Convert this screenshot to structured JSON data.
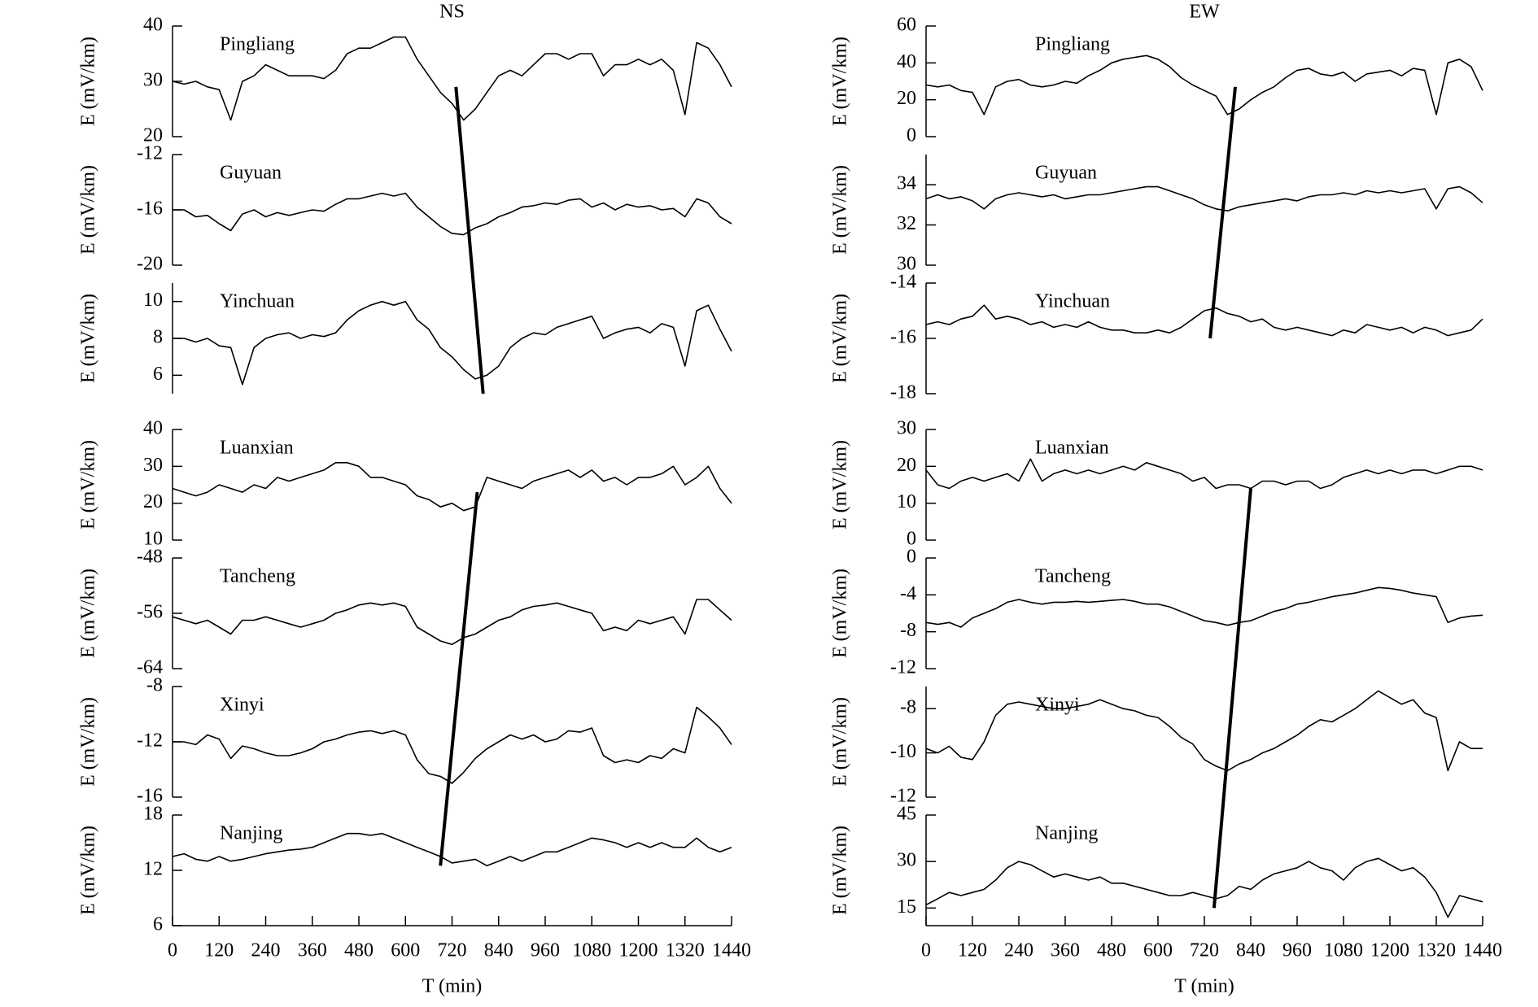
{
  "chart_data": [
    {
      "type": "line",
      "title": "NS",
      "xlim": [
        0,
        1440
      ],
      "x": [
        0,
        30,
        60,
        90,
        120,
        150,
        180,
        210,
        240,
        270,
        300,
        330,
        360,
        390,
        420,
        450,
        480,
        510,
        540,
        570,
        600,
        630,
        660,
        690,
        720,
        750,
        780,
        810,
        840,
        870,
        900,
        930,
        960,
        990,
        1020,
        1050,
        1080,
        1110,
        1140,
        1170,
        1200,
        1230,
        1260,
        1290,
        1320,
        1350,
        1380,
        1410,
        1440
      ],
      "panels": [
        {
          "name": "Pingliang",
          "ylabel": "E (mV/km)",
          "ylim": [
            20,
            40
          ],
          "yticks": [
            20,
            30,
            40
          ],
          "values": [
            30,
            29.5,
            30,
            29,
            28.5,
            23,
            30,
            31,
            33,
            32,
            31,
            31,
            31,
            30.5,
            32,
            35,
            36,
            36,
            37,
            38,
            38,
            34,
            31,
            28,
            26,
            23,
            25,
            28,
            31,
            32,
            31,
            33,
            35,
            35,
            34,
            35,
            35,
            31,
            33,
            33,
            34,
            33,
            34,
            32,
            24,
            37,
            36,
            33,
            29
          ]
        },
        {
          "name": "Guyuan",
          "ylabel": "E (mV/km)",
          "ylim": [
            -20,
            -12
          ],
          "yticks": [
            -20,
            -16,
            -12
          ],
          "values": [
            -16,
            -16,
            -16.5,
            -16.4,
            -17,
            -17.5,
            -16.3,
            -16,
            -16.5,
            -16.2,
            -16.4,
            -16.2,
            -16,
            -16.1,
            -15.6,
            -15.2,
            -15.2,
            -15,
            -14.8,
            -15,
            -14.8,
            -15.8,
            -16.5,
            -17.2,
            -17.7,
            -17.8,
            -17.3,
            -17,
            -16.5,
            -16.2,
            -15.8,
            -15.7,
            -15.5,
            -15.6,
            -15.3,
            -15.2,
            -15.8,
            -15.5,
            -16,
            -15.6,
            -15.8,
            -15.7,
            -16,
            -15.9,
            -16.5,
            -15.2,
            -15.5,
            -16.5,
            -17
          ]
        },
        {
          "name": "Yinchuan",
          "ylabel": "E (mV/km)",
          "ylim": [
            5,
            11
          ],
          "yticks": [
            6,
            8,
            10
          ],
          "values": [
            8,
            8,
            7.8,
            8,
            7.6,
            7.5,
            5.5,
            7.5,
            8,
            8.2,
            8.3,
            8,
            8.2,
            8.1,
            8.3,
            9,
            9.5,
            9.8,
            10,
            9.8,
            10,
            9,
            8.5,
            7.5,
            7,
            6.3,
            5.8,
            6,
            6.5,
            7.5,
            8,
            8.3,
            8.2,
            8.6,
            8.8,
            9,
            9.2,
            8,
            8.3,
            8.5,
            8.6,
            8.3,
            8.8,
            8.6,
            6.5,
            9.5,
            9.8,
            8.5,
            7.3
          ]
        }
      ],
      "front": {
        "x": [
          730,
          800
        ],
        "y": [
          29,
          5
        ]
      }
    },
    {
      "type": "line",
      "xlabel": "T (min)",
      "xlim": [
        0,
        1440
      ],
      "xticks": [
        0,
        120,
        240,
        360,
        480,
        600,
        720,
        840,
        960,
        1080,
        1200,
        1320,
        1440
      ],
      "x": [
        0,
        30,
        60,
        90,
        120,
        150,
        180,
        210,
        240,
        270,
        300,
        330,
        360,
        390,
        420,
        450,
        480,
        510,
        540,
        570,
        600,
        630,
        660,
        690,
        720,
        750,
        780,
        810,
        840,
        870,
        900,
        930,
        960,
        990,
        1020,
        1050,
        1080,
        1110,
        1140,
        1170,
        1200,
        1230,
        1260,
        1290,
        1320,
        1350,
        1380,
        1410,
        1440
      ],
      "panels": [
        {
          "name": "Luanxian",
          "ylabel": "E (mV/km)",
          "ylim": [
            10,
            40
          ],
          "yticks": [
            10,
            20,
            30,
            40
          ],
          "values": [
            24,
            23,
            22,
            23,
            25,
            24,
            23,
            25,
            24,
            27,
            26,
            27,
            28,
            29,
            31,
            31,
            30,
            27,
            27,
            26,
            25,
            22,
            21,
            19,
            20,
            18,
            19,
            27,
            26,
            25,
            24,
            26,
            27,
            28,
            29,
            27,
            29,
            26,
            27,
            25,
            27,
            27,
            28,
            30,
            25,
            27,
            30,
            24,
            20
          ]
        },
        {
          "name": "Tancheng",
          "ylabel": "E (mV/km)",
          "ylim": [
            -64,
            -48
          ],
          "yticks": [
            -64,
            -56,
            -48
          ],
          "values": [
            -56.5,
            -57,
            -57.5,
            -57,
            -58,
            -59,
            -57,
            -57,
            -56.5,
            -57,
            -57.5,
            -58,
            -57.5,
            -57,
            -56,
            -55.5,
            -54.8,
            -54.5,
            -54.8,
            -54.5,
            -55,
            -58,
            -59,
            -60,
            -60.5,
            -59.5,
            -59,
            -58,
            -57,
            -56.5,
            -55.5,
            -55,
            -54.8,
            -54.5,
            -55,
            -55.5,
            -56,
            -58.5,
            -58,
            -58.5,
            -57,
            -57.5,
            -57,
            -56.5,
            -59,
            -54,
            -54,
            -55.5,
            -57
          ]
        },
        {
          "name": "Xinyi",
          "ylabel": "E (mV/km)",
          "ylim": [
            -16,
            -8
          ],
          "yticks": [
            -16,
            -12,
            -8
          ],
          "values": [
            -12,
            -12,
            -12.2,
            -11.5,
            -11.8,
            -13.2,
            -12.3,
            -12.5,
            -12.8,
            -13,
            -13,
            -12.8,
            -12.5,
            -12,
            -11.8,
            -11.5,
            -11.3,
            -11.2,
            -11.4,
            -11.2,
            -11.5,
            -13.3,
            -14.3,
            -14.5,
            -15,
            -14.2,
            -13.2,
            -12.5,
            -12,
            -11.5,
            -11.8,
            -11.5,
            -12,
            -11.8,
            -11.2,
            -11.3,
            -11,
            -13,
            -13.5,
            -13.3,
            -13.5,
            -13,
            -13.2,
            -12.5,
            -12.8,
            -9.5,
            -10.2,
            -11,
            -12.2
          ]
        },
        {
          "name": "Nanjing",
          "ylabel": "E (mV/km)",
          "ylim": [
            6,
            18
          ],
          "yticks": [
            6,
            12,
            18
          ],
          "values": [
            13.5,
            13.8,
            13.2,
            13,
            13.5,
            13,
            13.2,
            13.5,
            13.8,
            14,
            14.2,
            14.3,
            14.5,
            15,
            15.5,
            16,
            16,
            15.8,
            16,
            15.5,
            15,
            14.5,
            14,
            13.5,
            12.8,
            13,
            13.2,
            12.5,
            13,
            13.5,
            13,
            13.5,
            14,
            14,
            14.5,
            15,
            15.5,
            15.3,
            15,
            14.5,
            15,
            14.5,
            15,
            14.5,
            14.5,
            15.5,
            14.5,
            14,
            14.5
          ]
        }
      ],
      "front": {
        "x": [
          785,
          690
        ],
        "y": [
          23,
          12.5
        ]
      }
    },
    {
      "type": "line",
      "title": "EW",
      "xlim": [
        0,
        1440
      ],
      "x": [
        0,
        30,
        60,
        90,
        120,
        150,
        180,
        210,
        240,
        270,
        300,
        330,
        360,
        390,
        420,
        450,
        480,
        510,
        540,
        570,
        600,
        630,
        660,
        690,
        720,
        750,
        780,
        810,
        840,
        870,
        900,
        930,
        960,
        990,
        1020,
        1050,
        1080,
        1110,
        1140,
        1170,
        1200,
        1230,
        1260,
        1290,
        1320,
        1350,
        1380,
        1410,
        1440
      ],
      "panels": [
        {
          "name": "Pingliang",
          "ylabel": "E (mV/km)",
          "ylim": [
            0,
            60
          ],
          "yticks": [
            0,
            20,
            40,
            60
          ],
          "values": [
            28,
            27,
            28,
            25,
            24,
            12,
            27,
            30,
            31,
            28,
            27,
            28,
            30,
            29,
            33,
            36,
            40,
            42,
            43,
            44,
            42,
            38,
            32,
            28,
            25,
            22,
            12,
            15,
            20,
            24,
            27,
            32,
            36,
            37,
            34,
            33,
            35,
            30,
            34,
            35,
            36,
            33,
            37,
            36,
            12,
            40,
            42,
            38,
            25
          ]
        },
        {
          "name": "Guyuan",
          "ylabel": "E (mV/km)",
          "ylim": [
            30,
            35.5
          ],
          "yticks": [
            30,
            32,
            34
          ],
          "values": [
            33.3,
            33.5,
            33.3,
            33.4,
            33.2,
            32.8,
            33.3,
            33.5,
            33.6,
            33.5,
            33.4,
            33.5,
            33.3,
            33.4,
            33.5,
            33.5,
            33.6,
            33.7,
            33.8,
            33.9,
            33.9,
            33.7,
            33.5,
            33.3,
            33,
            32.8,
            32.7,
            32.9,
            33,
            33.1,
            33.2,
            33.3,
            33.2,
            33.4,
            33.5,
            33.5,
            33.6,
            33.5,
            33.7,
            33.6,
            33.7,
            33.6,
            33.7,
            33.8,
            32.8,
            33.8,
            33.9,
            33.6,
            33.1
          ]
        },
        {
          "name": "Yinchuan",
          "ylabel": "E (mV/km)",
          "ylim": [
            -18,
            -14
          ],
          "yticks": [
            -18,
            -16,
            -14
          ],
          "values": [
            -15.5,
            -15.4,
            -15.5,
            -15.3,
            -15.2,
            -14.8,
            -15.3,
            -15.2,
            -15.3,
            -15.5,
            -15.4,
            -15.6,
            -15.5,
            -15.6,
            -15.4,
            -15.6,
            -15.7,
            -15.7,
            -15.8,
            -15.8,
            -15.7,
            -15.8,
            -15.6,
            -15.3,
            -15,
            -14.9,
            -15.1,
            -15.2,
            -15.4,
            -15.3,
            -15.6,
            -15.7,
            -15.6,
            -15.7,
            -15.8,
            -15.9,
            -15.7,
            -15.8,
            -15.5,
            -15.6,
            -15.7,
            -15.6,
            -15.8,
            -15.6,
            -15.7,
            -15.9,
            -15.8,
            -15.7,
            -15.3
          ]
        }
      ],
      "front": {
        "x": [
          800,
          735
        ],
        "y": [
          27,
          -16
        ]
      }
    },
    {
      "type": "line",
      "xlabel": "T (min)",
      "xlim": [
        0,
        1440
      ],
      "xticks": [
        0,
        120,
        240,
        360,
        480,
        600,
        720,
        840,
        960,
        1080,
        1200,
        1320,
        1440
      ],
      "x": [
        0,
        30,
        60,
        90,
        120,
        150,
        180,
        210,
        240,
        270,
        300,
        330,
        360,
        390,
        420,
        450,
        480,
        510,
        540,
        570,
        600,
        630,
        660,
        690,
        720,
        750,
        780,
        810,
        840,
        870,
        900,
        930,
        960,
        990,
        1020,
        1050,
        1080,
        1110,
        1140,
        1170,
        1200,
        1230,
        1260,
        1290,
        1320,
        1350,
        1380,
        1410,
        1440
      ],
      "panels": [
        {
          "name": "Luanxian",
          "ylabel": "E (mV/km)",
          "ylim": [
            0,
            30
          ],
          "yticks": [
            0,
            10,
            20,
            30
          ],
          "values": [
            19,
            15,
            14,
            16,
            17,
            16,
            17,
            18,
            16,
            22,
            16,
            18,
            19,
            18,
            19,
            18,
            19,
            20,
            19,
            21,
            20,
            19,
            18,
            16,
            17,
            14,
            15,
            15,
            14,
            16,
            16,
            15,
            16,
            16,
            14,
            15,
            17,
            18,
            19,
            18,
            19,
            18,
            19,
            19,
            18,
            19,
            20,
            20,
            19
          ]
        },
        {
          "name": "Tancheng",
          "ylabel": "E (mV/km)",
          "ylim": [
            -12,
            0
          ],
          "yticks": [
            -12,
            -8,
            -4,
            0
          ],
          "values": [
            -7,
            -7.2,
            -7,
            -7.5,
            -6.5,
            -6,
            -5.5,
            -4.8,
            -4.5,
            -4.8,
            -5,
            -4.8,
            -4.8,
            -4.7,
            -4.8,
            -4.7,
            -4.6,
            -4.5,
            -4.7,
            -5,
            -5,
            -5.3,
            -5.8,
            -6.3,
            -6.8,
            -7,
            -7.3,
            -7,
            -6.8,
            -6.3,
            -5.8,
            -5.5,
            -5,
            -4.8,
            -4.5,
            -4.2,
            -4,
            -3.8,
            -3.5,
            -3.2,
            -3.3,
            -3.5,
            -3.8,
            -4,
            -4.2,
            -7,
            -6.5,
            -6.3,
            -6.2
          ]
        },
        {
          "name": "Xinyi",
          "ylabel": "E (mV/km)",
          "ylim": [
            -12,
            -7
          ],
          "yticks": [
            -12,
            -10,
            -8
          ],
          "values": [
            -9.8,
            -10,
            -9.7,
            -10.2,
            -10.3,
            -9.5,
            -8.3,
            -7.8,
            -7.7,
            -7.8,
            -7.9,
            -8,
            -8,
            -7.9,
            -7.8,
            -7.6,
            -7.8,
            -8,
            -8.1,
            -8.3,
            -8.4,
            -8.8,
            -9.3,
            -9.6,
            -10.3,
            -10.6,
            -10.8,
            -10.5,
            -10.3,
            -10,
            -9.8,
            -9.5,
            -9.2,
            -8.8,
            -8.5,
            -8.6,
            -8.3,
            -8,
            -7.6,
            -7.2,
            -7.5,
            -7.8,
            -7.6,
            -8.2,
            -8.4,
            -10.8,
            -9.5,
            -9.8,
            -9.8
          ]
        },
        {
          "name": "Nanjing",
          "ylabel": "E (mV/km)",
          "ylim": [
            9.3,
            45
          ],
          "yticks": [
            15,
            30,
            45
          ],
          "values": [
            16,
            18,
            20,
            19,
            20,
            21,
            24,
            28,
            30,
            29,
            27,
            25,
            26,
            25,
            24,
            25,
            23,
            23,
            22,
            21,
            20,
            19,
            19,
            20,
            19,
            18,
            19,
            22,
            21,
            24,
            26,
            27,
            28,
            30,
            28,
            27,
            24,
            28,
            30,
            31,
            29,
            27,
            28,
            25,
            20,
            12,
            19,
            18,
            17
          ]
        }
      ],
      "front": {
        "x": [
          840,
          745
        ],
        "y": [
          14,
          15
        ]
      }
    }
  ]
}
